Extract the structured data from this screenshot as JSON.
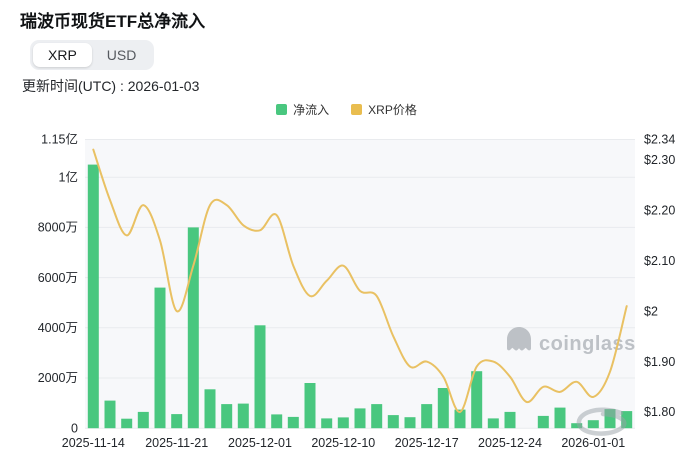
{
  "header": {
    "title": "瑞波币现货ETF总净流入",
    "tabs": [
      {
        "label": "XRP",
        "active": true
      },
      {
        "label": "USD",
        "active": false
      }
    ],
    "updated": "更新时间(UTC) : 2026-01-03"
  },
  "legend": [
    {
      "label": "净流入",
      "color": "#49C77F"
    },
    {
      "label": "XRP价格",
      "color": "#E9BD4F"
    }
  ],
  "watermark": "coinglass",
  "colors": {
    "bar": "#49C77F",
    "line": "#E9C163",
    "plot_bg": "#f7f8fa",
    "grid": "#e9ebee",
    "axis_text": "#22262b",
    "watermark_gray": "#bdc1c6",
    "scribble_gray": "#9aa1a8"
  },
  "chart_data": {
    "type": "bar+line",
    "title": "瑞波币现货ETF总净流入",
    "series": [
      {
        "name": "净流入",
        "type": "bar",
        "axis": "left",
        "unit": "XRP",
        "values": [
          105000000,
          11000000,
          3800000,
          6500000,
          56000000,
          5600000,
          80000000,
          15500000,
          9600000,
          9800000,
          41000000,
          5500000,
          4500000,
          18000000,
          3900000,
          4300000,
          7900000,
          9600000,
          5200000,
          4400000,
          9600000,
          16000000,
          7400000,
          22700000,
          3900000,
          6500000,
          0,
          4900000,
          8200000,
          2000000,
          3200000,
          7600000,
          6800000
        ]
      },
      {
        "name": "XRP价格",
        "type": "line",
        "axis": "right",
        "unit": "USD",
        "values": [
          2.32,
          2.22,
          2.15,
          2.21,
          2.14,
          2.0,
          2.09,
          2.21,
          2.21,
          2.17,
          2.16,
          2.19,
          2.09,
          2.03,
          2.06,
          2.09,
          2.04,
          2.03,
          1.95,
          1.89,
          1.9,
          1.87,
          1.8,
          1.89,
          1.9,
          1.87,
          1.82,
          1.85,
          1.84,
          1.86,
          1.83,
          1.88,
          2.01
        ]
      }
    ],
    "x_tick_labels": [
      "2025-11-14",
      "2025-11-21",
      "2025-12-01",
      "2025-12-10",
      "2025-12-17",
      "2025-12-24",
      "2026-01-01"
    ],
    "x_tick_indices": [
      0,
      5,
      10,
      15,
      20,
      25,
      30
    ],
    "left_axis": {
      "ticks": [
        "1.15亿",
        "1亿",
        "8000万",
        "6000万",
        "4000万",
        "2000万",
        "0"
      ],
      "tick_values": [
        115000000,
        100000000,
        80000000,
        60000000,
        40000000,
        20000000,
        0
      ],
      "min": 0,
      "max": 115000000
    },
    "right_axis": {
      "ticks": [
        "$2.34",
        "$2.30",
        "$2.20",
        "$2.10",
        "$2",
        "$1.90",
        "$1.80"
      ],
      "tick_values": [
        2.34,
        2.3,
        2.2,
        2.1,
        2.0,
        1.9,
        1.8
      ],
      "min": 1.768,
      "max": 2.34
    },
    "grid": true,
    "legend_position": "top-center"
  }
}
